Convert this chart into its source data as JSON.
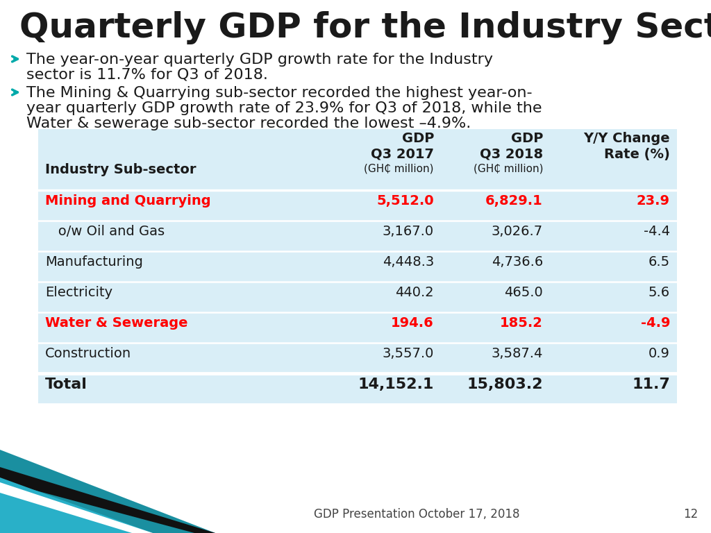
{
  "title": "Quarterly GDP for the Industry Sector",
  "bullet1_line1": "The year-on-year quarterly GDP growth rate for the Industry",
  "bullet1_line2": "sector is 11.7% for Q3 of 2018.",
  "bullet2_line1": "The Mining & Quarrying sub-sector recorded the highest year-on-",
  "bullet2_line2": "year quarterly GDP growth rate of 23.9% for Q3 of 2018, while the",
  "bullet2_line3": "Water & sewerage sub-sector recorded the lowest –4.9%.",
  "rows": [
    {
      "label": "Mining and Quarrying",
      "gdp2017": "5,512.0",
      "gdp2018": "6,829.1",
      "change": "23.9",
      "highlight": true
    },
    {
      "label": "   o/w Oil and Gas",
      "gdp2017": "3,167.0",
      "gdp2018": "3,026.7",
      "change": "-4.4",
      "highlight": false
    },
    {
      "label": "Manufacturing",
      "gdp2017": "4,448.3",
      "gdp2018": "4,736.6",
      "change": "6.5",
      "highlight": false
    },
    {
      "label": "Electricity",
      "gdp2017": "440.2",
      "gdp2018": "465.0",
      "change": "5.6",
      "highlight": false
    },
    {
      "label": "Water & Sewerage",
      "gdp2017": "194.6",
      "gdp2018": "185.2",
      "change": "-4.9",
      "highlight": true
    },
    {
      "label": "Construction",
      "gdp2017": "3,557.0",
      "gdp2018": "3,587.4",
      "change": "0.9",
      "highlight": false
    }
  ],
  "total_row": {
    "label": "Total",
    "gdp2017": "14,152.1",
    "gdp2018": "15,803.2",
    "change": "11.7"
  },
  "footer": "GDP Presentation October 17, 2018",
  "page_number": "12",
  "bg_color": "#ffffff",
  "table_bg": "#d9eef7",
  "highlight_color": "#ff0000",
  "normal_color": "#1a1a1a",
  "title_color": "#1a1a1a",
  "arrow_color": "#00aaaa",
  "bullet_fontsize": 16,
  "title_fontsize": 36,
  "table_fontsize": 14,
  "header_fontsize": 14,
  "small_fontsize": 11,
  "total_fontsize": 16,
  "teal_large": "#1a8fa0",
  "teal_mid": "#0073a8",
  "dark_strip": "#111111"
}
